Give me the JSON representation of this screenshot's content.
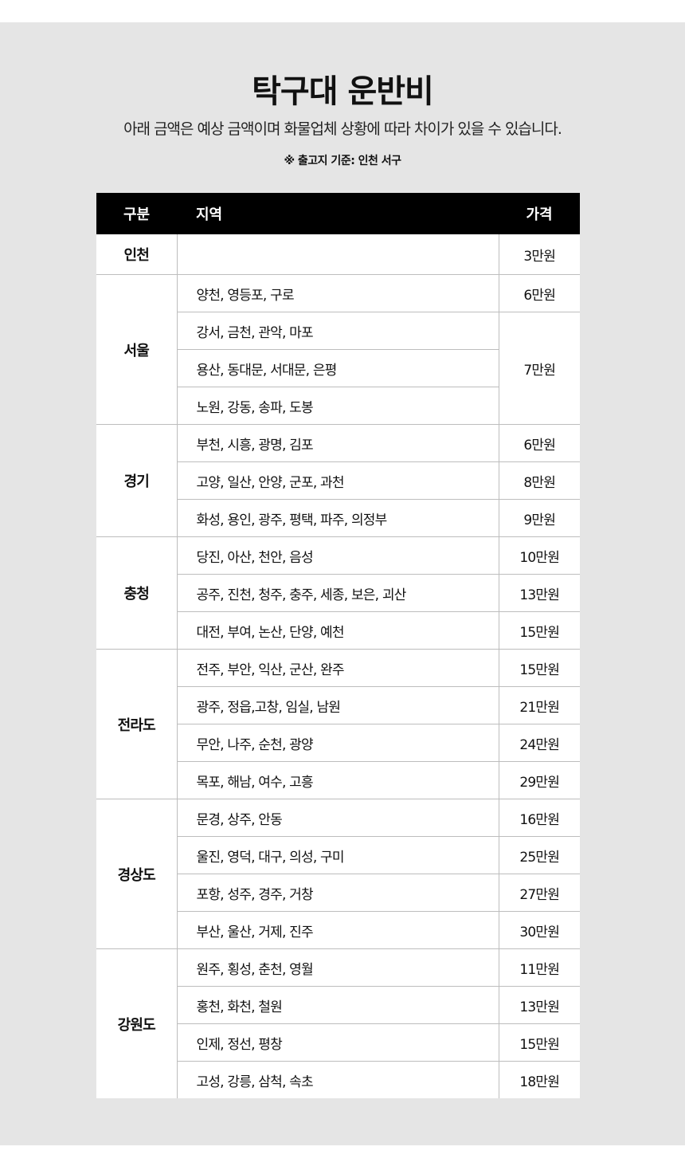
{
  "title": "탁구대 운반비",
  "subtitle": "아래 금액은 예상 금액이며 화물업체 상황에 따라 차이가 있을 수 있습니다.",
  "note": "※ 출고지 기준: 인천 서구",
  "table": {
    "headers": [
      "구분",
      "지역",
      "가격"
    ],
    "groups": [
      {
        "region": "인천",
        "rows": [
          {
            "area": "",
            "price": "3만원",
            "span": 1
          }
        ]
      },
      {
        "region": "서울",
        "rows": [
          {
            "area": "양천, 영등포, 구로",
            "price": "6만원",
            "span": 1
          },
          {
            "area": "강서, 금천, 관악, 마포",
            "price": "7만원",
            "span": 3
          },
          {
            "area": "용산, 동대문, 서대문, 은평"
          },
          {
            "area": "노원, 강동, 송파, 도봉"
          }
        ]
      },
      {
        "region": "경기",
        "rows": [
          {
            "area": "부천, 시흥, 광명, 김포",
            "price": "6만원",
            "span": 1
          },
          {
            "area": "고양, 일산, 안양, 군포, 과천",
            "price": "8만원",
            "span": 1
          },
          {
            "area": "화성, 용인, 광주, 평택, 파주, 의정부",
            "price": "9만원",
            "span": 1
          }
        ]
      },
      {
        "region": "충청",
        "rows": [
          {
            "area": "당진, 아산, 천안, 음성",
            "price": "10만원",
            "span": 1
          },
          {
            "area": "공주, 진천, 청주, 충주, 세종, 보은, 괴산",
            "price": "13만원",
            "span": 1
          },
          {
            "area": "대전, 부여, 논산, 단양, 예천",
            "price": "15만원",
            "span": 1
          }
        ]
      },
      {
        "region": "전라도",
        "rows": [
          {
            "area": "전주, 부안, 익산, 군산, 완주",
            "price": "15만원",
            "span": 1
          },
          {
            "area": "광주, 정읍,고창, 임실, 남원",
            "price": "21만원",
            "span": 1
          },
          {
            "area": "무안, 나주, 순천, 광양",
            "price": "24만원",
            "span": 1
          },
          {
            "area": "목포, 해남, 여수, 고흥",
            "price": "29만원",
            "span": 1
          }
        ]
      },
      {
        "region": "경상도",
        "rows": [
          {
            "area": "문경, 상주, 안동",
            "price": "16만원",
            "span": 1
          },
          {
            "area": "울진, 영덕, 대구, 의성, 구미",
            "price": "25만원",
            "span": 1
          },
          {
            "area": "포항, 성주, 경주, 거창",
            "price": "27만원",
            "span": 1
          },
          {
            "area": "부산, 울산, 거제, 진주",
            "price": "30만원",
            "span": 1
          }
        ]
      },
      {
        "region": "강원도",
        "rows": [
          {
            "area": "원주, 횡성, 춘천, 영월",
            "price": "11만원",
            "span": 1
          },
          {
            "area": "홍천, 화천, 철원",
            "price": "13만원",
            "span": 1
          },
          {
            "area": "인제, 정선, 평창",
            "price": "15만원",
            "span": 1
          },
          {
            "area": "고성, 강릉, 삼척, 속초",
            "price": "18만원",
            "span": 1
          }
        ]
      }
    ]
  }
}
